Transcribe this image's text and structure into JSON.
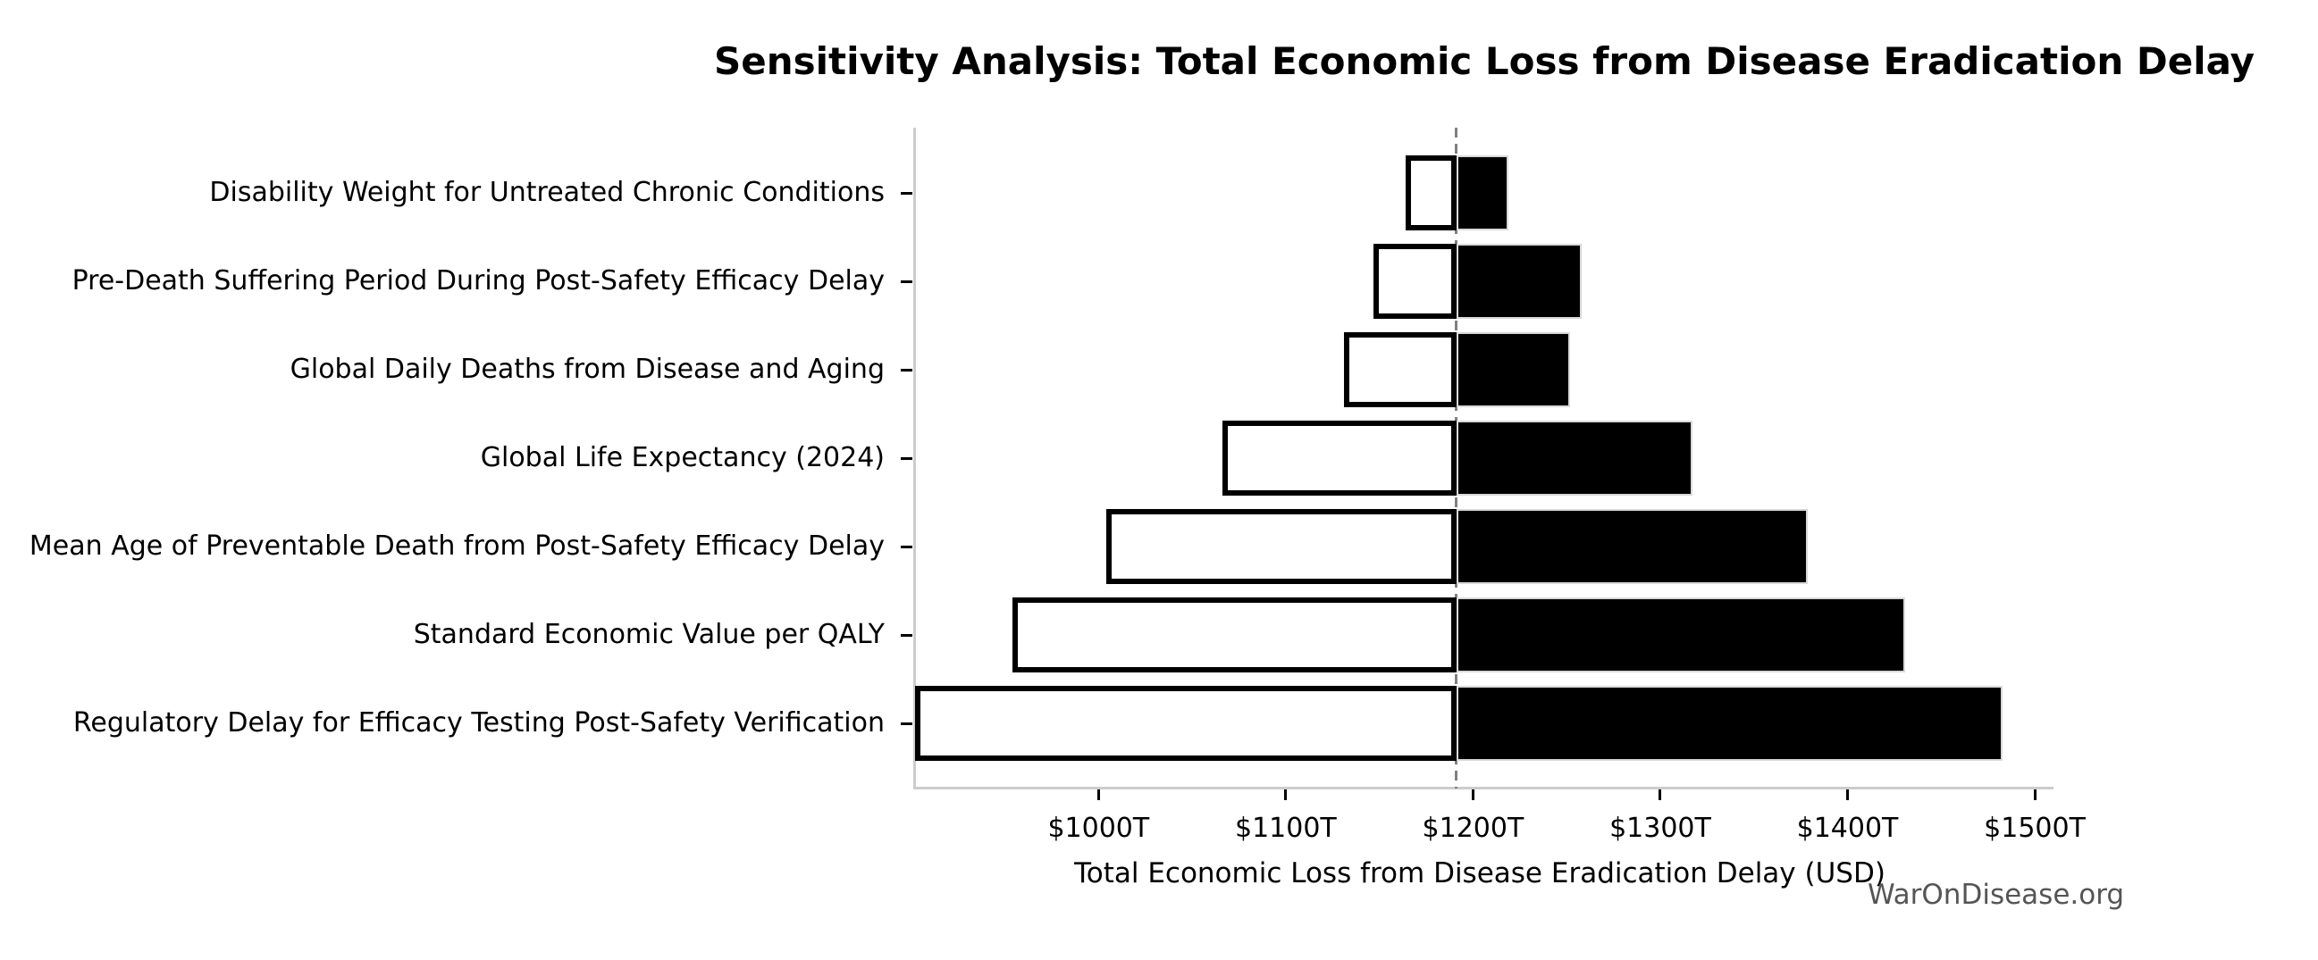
{
  "title": "Sensitivity Analysis: Total Economic Loss from Disease Eradication Delay",
  "watermark": {
    "text": "WarOnDisease.org",
    "color": "#555555"
  },
  "chart_data": {
    "type": "bar",
    "subtype": "tornado-sensitivity",
    "title": "Sensitivity Analysis: Total Economic Loss from Disease Eradication Delay",
    "xlabel": "Total Economic Loss from Disease Eradication Delay (USD)",
    "ylabel": "",
    "unit": "trillion USD (T)",
    "orientation": "horizontal",
    "grid": false,
    "legend": "none",
    "xlim": [
      902,
      1510
    ],
    "x_ticks": [
      1000,
      1100,
      1200,
      1300,
      1400,
      1500
    ],
    "x_tick_labels": [
      "$1000T",
      "$1100T",
      "$1200T",
      "$1300T",
      "$1400T",
      "$1500T"
    ],
    "baseline_value": 1191,
    "categories": [
      "Disability Weight for Untreated Chronic Conditions",
      "Pre-Death Suffering Period During Post-Safety Efficacy Delay",
      "Global Daily Deaths from Disease and Aging",
      "Global Life Expectancy (2024)",
      "Mean Age of Preventable Death from Post-Safety Efficacy Delay",
      "Standard Economic Value per QALY",
      "Regulatory Delay for Efficacy Testing Post-Safety Verification"
    ],
    "series": [
      {
        "name": "low-side (white bar, left of baseline)",
        "values": [
          1164,
          1147,
          1131,
          1066,
          1004,
          954,
          902
        ]
      },
      {
        "name": "high-side (black bar, right of baseline)",
        "values": [
          1219,
          1258,
          1252,
          1317,
          1379,
          1431,
          1483
        ]
      }
    ],
    "colors": {
      "low_fill": "#ffffff",
      "low_edge": "#000000",
      "high_fill": "#000000",
      "high_edge": "#d9d9d9",
      "baseline_line": "#808080",
      "spine": "#cccccc",
      "tick": "#000000",
      "text": "#000000",
      "watermark": "#555555"
    }
  }
}
